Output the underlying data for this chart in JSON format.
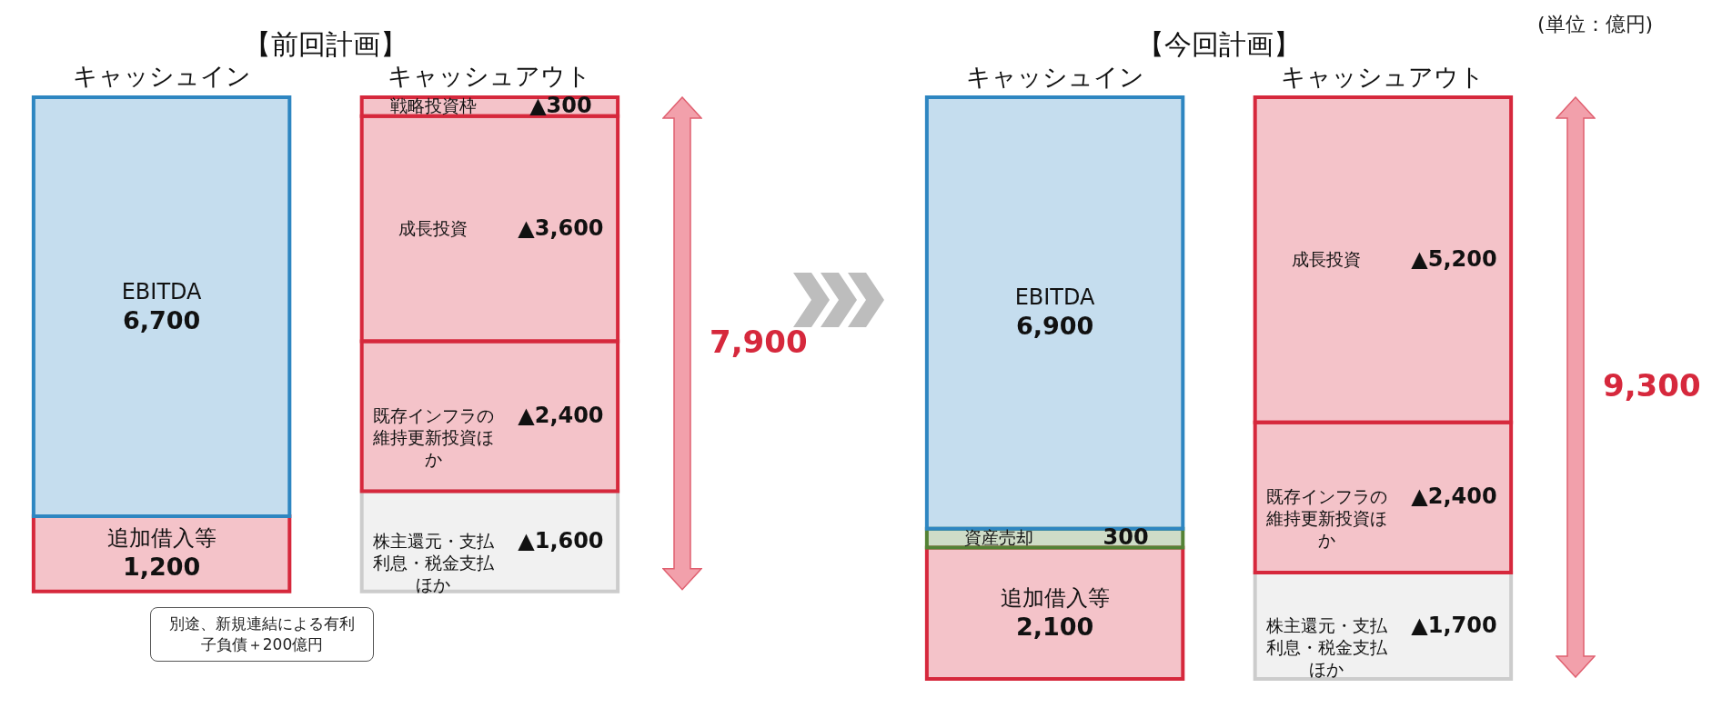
{
  "chart_data": [
    {
      "type": "bar",
      "stacked": true,
      "title": "【前回計画】",
      "categories": [
        "キャッシュイン",
        "キャッシュアウト"
      ],
      "series": [
        {
          "name": "追加借入等",
          "color": "#d6283c",
          "values": [
            1200,
            null
          ],
          "value_labels": [
            "1,200",
            null
          ]
        },
        {
          "name": "EBITDA",
          "color": "#2e86c1",
          "values": [
            6700,
            null
          ],
          "value_labels": [
            "6,700",
            null
          ]
        },
        {
          "name": "株主還元・支払利息・税金支払ほか",
          "color": "#cccccc",
          "values": [
            null,
            1600
          ],
          "value_labels": [
            null,
            "▲1,600"
          ]
        },
        {
          "name": "既存インフラの維持更新投資ほか",
          "color": "#d6283c",
          "values": [
            null,
            2400
          ],
          "value_labels": [
            null,
            "▲2,400"
          ]
        },
        {
          "name": "成長投資",
          "color": "#d6283c",
          "values": [
            null,
            3600
          ],
          "value_labels": [
            null,
            "▲3,600"
          ]
        },
        {
          "name": "戦略投資枠",
          "color": "#d6283c",
          "values": [
            null,
            300
          ],
          "value_labels": [
            null,
            "▲300"
          ]
        }
      ],
      "totals": [
        null,
        "7,900"
      ],
      "annotations": [
        "別途、新規連結による有利子負債＋200億円"
      ]
    },
    {
      "type": "bar",
      "stacked": true,
      "title": "【今回計画】",
      "categories": [
        "キャッシュイン",
        "キャッシュアウト"
      ],
      "series": [
        {
          "name": "追加借入等",
          "color": "#d6283c",
          "values": [
            2100,
            null
          ],
          "value_labels": [
            "2,100",
            null
          ]
        },
        {
          "name": "資産売却",
          "color": "#548235",
          "values": [
            300,
            null
          ],
          "value_labels": [
            "300",
            null
          ]
        },
        {
          "name": "EBITDA",
          "color": "#2e86c1",
          "values": [
            6900,
            null
          ],
          "value_labels": [
            "6,900",
            null
          ]
        },
        {
          "name": "株主還元・支払利息・税金支払ほか",
          "color": "#cccccc",
          "values": [
            null,
            1700
          ],
          "value_labels": [
            null,
            "▲1,700"
          ]
        },
        {
          "name": "既存インフラの維持更新投資ほか",
          "color": "#d6283c",
          "values": [
            null,
            2400
          ],
          "value_labels": [
            null,
            "▲2,400"
          ]
        },
        {
          "name": "成長投資",
          "color": "#d6283c",
          "values": [
            null,
            5200
          ],
          "value_labels": [
            null,
            "▲5,200"
          ]
        }
      ],
      "totals": [
        null,
        "9,300"
      ],
      "annotations": [
        "(単位：億円)"
      ]
    }
  ]
}
